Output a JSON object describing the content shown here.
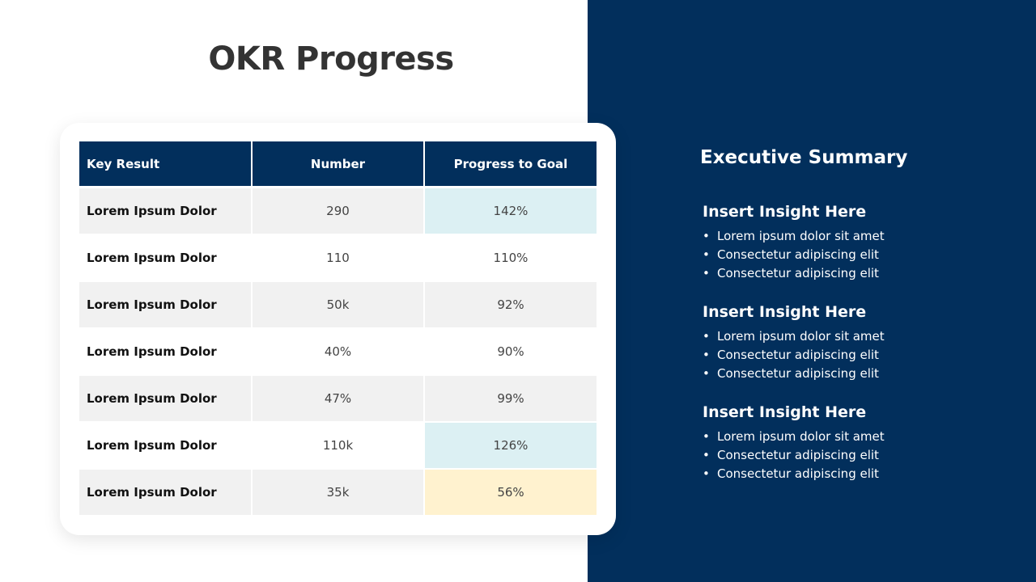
{
  "page": {
    "title": "OKR Progress"
  },
  "table": {
    "headers": [
      "Key Result",
      "Number",
      "Progress to Goal"
    ],
    "rows": [
      {
        "key": "Lorem Ipsum Dolor",
        "number": "290",
        "progress": "142%"
      },
      {
        "key": "Lorem Ipsum Dolor",
        "number": "110",
        "progress": "110%"
      },
      {
        "key": "Lorem Ipsum Dolor",
        "number": "50k",
        "progress": "92%"
      },
      {
        "key": "Lorem Ipsum Dolor",
        "number": "40%",
        "progress": "90%"
      },
      {
        "key": "Lorem Ipsum Dolor",
        "number": "47%",
        "progress": "99%"
      },
      {
        "key": "Lorem Ipsum Dolor",
        "number": "110k",
        "progress": "126%"
      },
      {
        "key": "Lorem Ipsum Dolor",
        "number": "35k",
        "progress": "56%"
      }
    ]
  },
  "summary": {
    "title": "Executive Summary",
    "insights": [
      {
        "heading": "Insert Insight Here",
        "bullets": [
          "Lorem ipsum dolor sit amet",
          "Consectetur adipiscing elit",
          "Consectetur adipiscing elit"
        ]
      },
      {
        "heading": "Insert Insight Here",
        "bullets": [
          "Lorem ipsum dolor sit amet",
          "Consectetur adipiscing elit",
          "Consectetur adipiscing elit"
        ]
      },
      {
        "heading": "Insert Insight Here",
        "bullets": [
          "Lorem ipsum dolor sit amet",
          "Consectetur adipiscing elit",
          "Consectetur adipiscing elit"
        ]
      }
    ]
  },
  "colors": {
    "navy": "#022f5c",
    "row_shade": "#f1f1f1",
    "highlight_above_goal": "#dcf0f3",
    "highlight_below_goal": "#fff2cf",
    "title_text": "#333333"
  }
}
